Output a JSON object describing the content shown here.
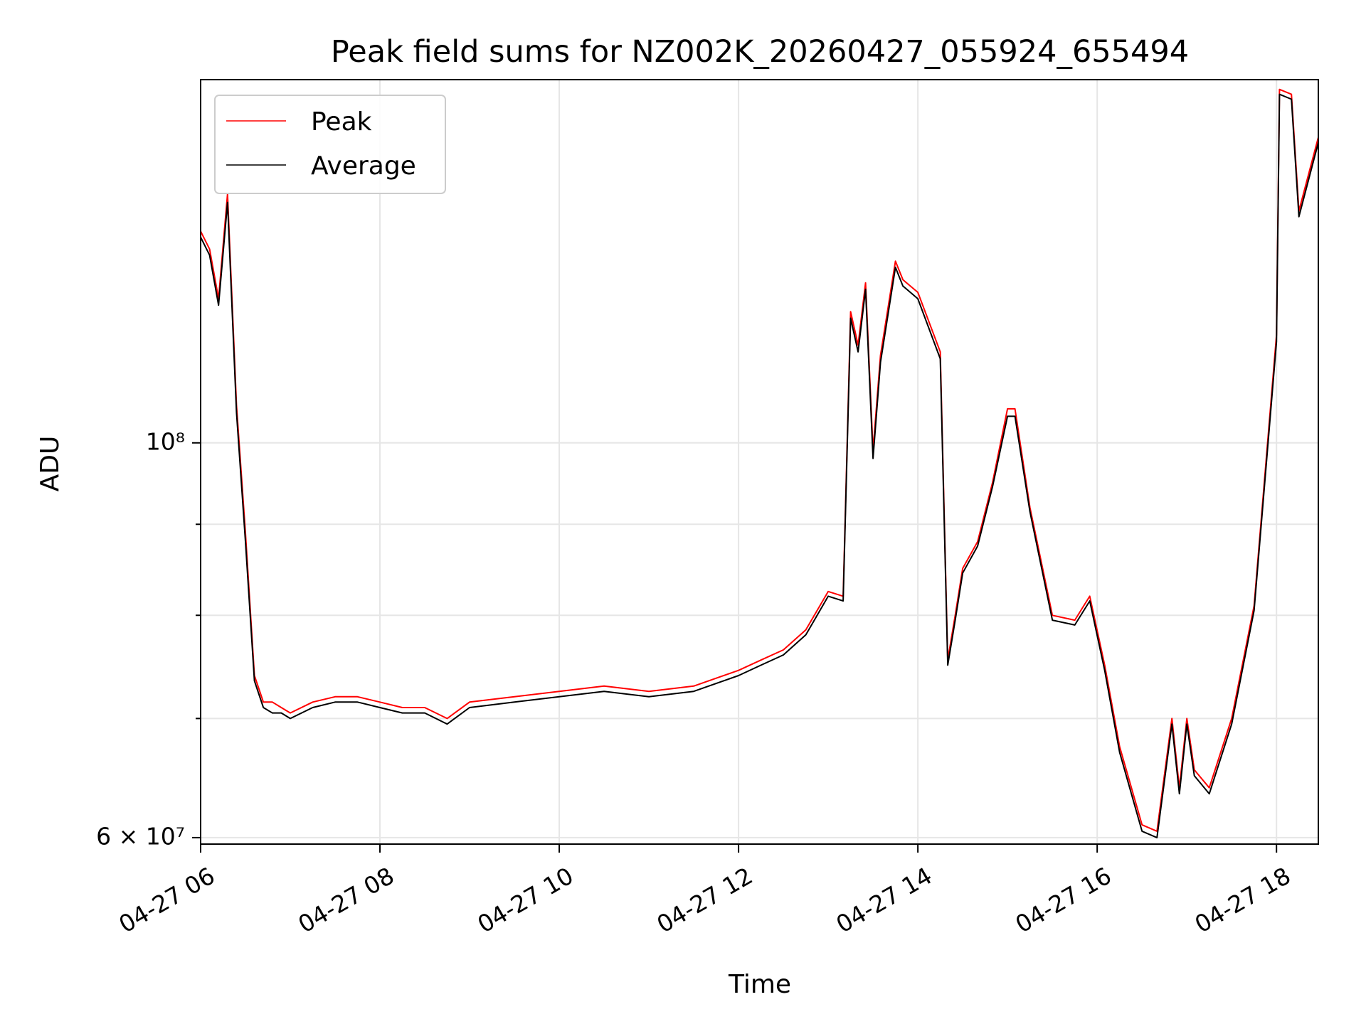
{
  "chart_data": {
    "type": "line",
    "title": "Peak field sums for NZ002K_20260427_055924_655494",
    "xlabel": "Time",
    "ylabel": "ADU",
    "y_scale": "log",
    "ylim": [
      59500000,
      160000000
    ],
    "xlim": [
      "04-27 06:00",
      "04-27 18:28"
    ],
    "grid": true,
    "legend": "upper-left",
    "x_ticks": [
      "04-27 06",
      "04-27 08",
      "04-27 10",
      "04-27 12",
      "04-27 14",
      "04-27 16",
      "04-27 18"
    ],
    "y_ticks": [
      {
        "value": 60000000,
        "label": "6 × 10⁷",
        "major": true
      },
      {
        "value": 70000000,
        "label": "",
        "major": false
      },
      {
        "value": 80000000,
        "label": "",
        "major": false
      },
      {
        "value": 90000000,
        "label": "",
        "major": false
      },
      {
        "value": 100000000,
        "label": "10⁸",
        "major": true
      }
    ],
    "series": [
      {
        "name": "Peak",
        "color": "#ff0000",
        "x": [
          "04-27 06:00",
          "04-27 06:06",
          "04-27 06:12",
          "04-27 06:18",
          "04-27 06:24",
          "04-27 06:30",
          "04-27 06:36",
          "04-27 06:42",
          "04-27 06:48",
          "04-27 06:54",
          "04-27 07:00",
          "04-27 07:15",
          "04-27 07:30",
          "04-27 07:45",
          "04-27 08:00",
          "04-27 08:15",
          "04-27 08:30",
          "04-27 08:45",
          "04-27 09:00",
          "04-27 09:30",
          "04-27 10:00",
          "04-27 10:30",
          "04-27 11:00",
          "04-27 11:30",
          "04-27 12:00",
          "04-27 12:15",
          "04-27 12:30",
          "04-27 12:45",
          "04-27 13:00",
          "04-27 13:10",
          "04-27 13:15",
          "04-27 13:20",
          "04-27 13:25",
          "04-27 13:30",
          "04-27 13:35",
          "04-27 13:45",
          "04-27 13:50",
          "04-27 14:00",
          "04-27 14:15",
          "04-27 14:20",
          "04-27 14:25",
          "04-27 14:30",
          "04-27 14:40",
          "04-27 14:50",
          "04-27 15:00",
          "04-27 15:05",
          "04-27 15:15",
          "04-27 15:30",
          "04-27 15:45",
          "04-27 15:55",
          "04-27 16:05",
          "04-27 16:15",
          "04-27 16:30",
          "04-27 16:40",
          "04-27 16:50",
          "04-27 16:55",
          "04-27 17:00",
          "04-27 17:05",
          "04-27 17:15",
          "04-27 17:30",
          "04-27 17:45",
          "04-27 18:00",
          "04-27 18:02",
          "04-27 18:10",
          "04-27 18:15",
          "04-27 18:28"
        ],
        "values": [
          131500000,
          128500000,
          120500000,
          138000000,
          105000000,
          89000000,
          74000000,
          71500000,
          71500000,
          71000000,
          70500000,
          71500000,
          72000000,
          72000000,
          71500000,
          71000000,
          71000000,
          70000000,
          71500000,
          72000000,
          72500000,
          73000000,
          72500000,
          73000000,
          74500000,
          75500000,
          76500000,
          78500000,
          82500000,
          82000000,
          118500000,
          113500000,
          123000000,
          99000000,
          112000000,
          126500000,
          123500000,
          121500000,
          112500000,
          75500000,
          80000000,
          85000000,
          88000000,
          95000000,
          104500000,
          104500000,
          92000000,
          80000000,
          79500000,
          82000000,
          75000000,
          67500000,
          61000000,
          60500000,
          70000000,
          64000000,
          70000000,
          65500000,
          64000000,
          70000000,
          81000000,
          115000000,
          158000000,
          157000000,
          135000000,
          148500000
        ]
      },
      {
        "name": "Average",
        "color": "#000000",
        "x": [
          "04-27 06:00",
          "04-27 06:06",
          "04-27 06:12",
          "04-27 06:18",
          "04-27 06:24",
          "04-27 06:30",
          "04-27 06:36",
          "04-27 06:42",
          "04-27 06:48",
          "04-27 06:54",
          "04-27 07:00",
          "04-27 07:15",
          "04-27 07:30",
          "04-27 07:45",
          "04-27 08:00",
          "04-27 08:15",
          "04-27 08:30",
          "04-27 08:45",
          "04-27 09:00",
          "04-27 09:30",
          "04-27 10:00",
          "04-27 10:30",
          "04-27 11:00",
          "04-27 11:30",
          "04-27 12:00",
          "04-27 12:15",
          "04-27 12:30",
          "04-27 12:45",
          "04-27 13:00",
          "04-27 13:10",
          "04-27 13:15",
          "04-27 13:20",
          "04-27 13:25",
          "04-27 13:30",
          "04-27 13:35",
          "04-27 13:45",
          "04-27 13:50",
          "04-27 14:00",
          "04-27 14:15",
          "04-27 14:20",
          "04-27 14:25",
          "04-27 14:30",
          "04-27 14:40",
          "04-27 14:50",
          "04-27 15:00",
          "04-27 15:05",
          "04-27 15:15",
          "04-27 15:30",
          "04-27 15:45",
          "04-27 15:55",
          "04-27 16:05",
          "04-27 16:15",
          "04-27 16:30",
          "04-27 16:40",
          "04-27 16:50",
          "04-27 16:55",
          "04-27 17:00",
          "04-27 17:05",
          "04-27 17:15",
          "04-27 17:30",
          "04-27 17:45",
          "04-27 18:00",
          "04-27 18:02",
          "04-27 18:10",
          "04-27 18:15",
          "04-27 18:28"
        ],
        "values": [
          130500000,
          127500000,
          119500000,
          136500000,
          104000000,
          88000000,
          73500000,
          71000000,
          70500000,
          70500000,
          70000000,
          71000000,
          71500000,
          71500000,
          71000000,
          70500000,
          70500000,
          69500000,
          71000000,
          71500000,
          72000000,
          72500000,
          72000000,
          72500000,
          74000000,
          75000000,
          76000000,
          78000000,
          82000000,
          81500000,
          117500000,
          112500000,
          122000000,
          98000000,
          111000000,
          125500000,
          122500000,
          120500000,
          111500000,
          75000000,
          79500000,
          84500000,
          87500000,
          94500000,
          103500000,
          103500000,
          91500000,
          79500000,
          79000000,
          81500000,
          74500000,
          67000000,
          60500000,
          60000000,
          69500000,
          63500000,
          69500000,
          65000000,
          63500000,
          69500000,
          80500000,
          114000000,
          157000000,
          156000000,
          134000000,
          147500000
        ]
      }
    ]
  }
}
